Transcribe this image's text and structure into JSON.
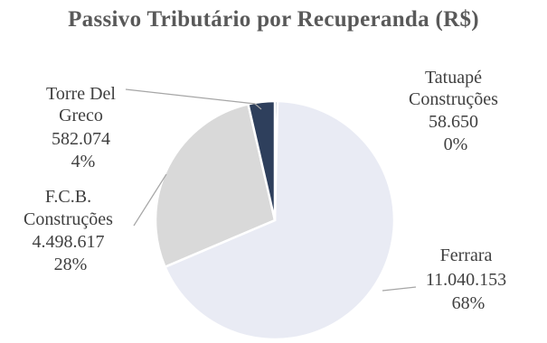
{
  "chart_data": {
    "type": "pie",
    "title": "Passivo Tributário por Recuperanda (R$)",
    "slices": [
      {
        "name": "Tatuapé Construções",
        "value_label": "58.650",
        "value": 58650,
        "percent_label": "0%",
        "color": "#1f3a5f"
      },
      {
        "name": "Ferrara",
        "value_label": "11.040.153",
        "value": 11040153,
        "percent_label": "68%",
        "color": "#e9ebf4"
      },
      {
        "name": "F.C.B. Construções",
        "value_label": "4.498.617",
        "value": 4498617,
        "percent_label": "28%",
        "color": "#d9d9d9"
      },
      {
        "name": "Torre Del Greco",
        "value_label": "582.074",
        "value": 582074,
        "percent_label": "4%",
        "color": "#2e3f5c"
      }
    ],
    "labels": {
      "tatuape": [
        "Tatuapé",
        "Construções",
        "58.650",
        "0%"
      ],
      "ferrara": [
        "Ferrara",
        "11.040.153",
        "68%"
      ],
      "fcb": [
        "F.C.B.",
        "Construções",
        "4.498.617",
        "28%"
      ],
      "torre": [
        "Torre Del",
        "Greco",
        "582.074",
        "4%"
      ]
    }
  }
}
